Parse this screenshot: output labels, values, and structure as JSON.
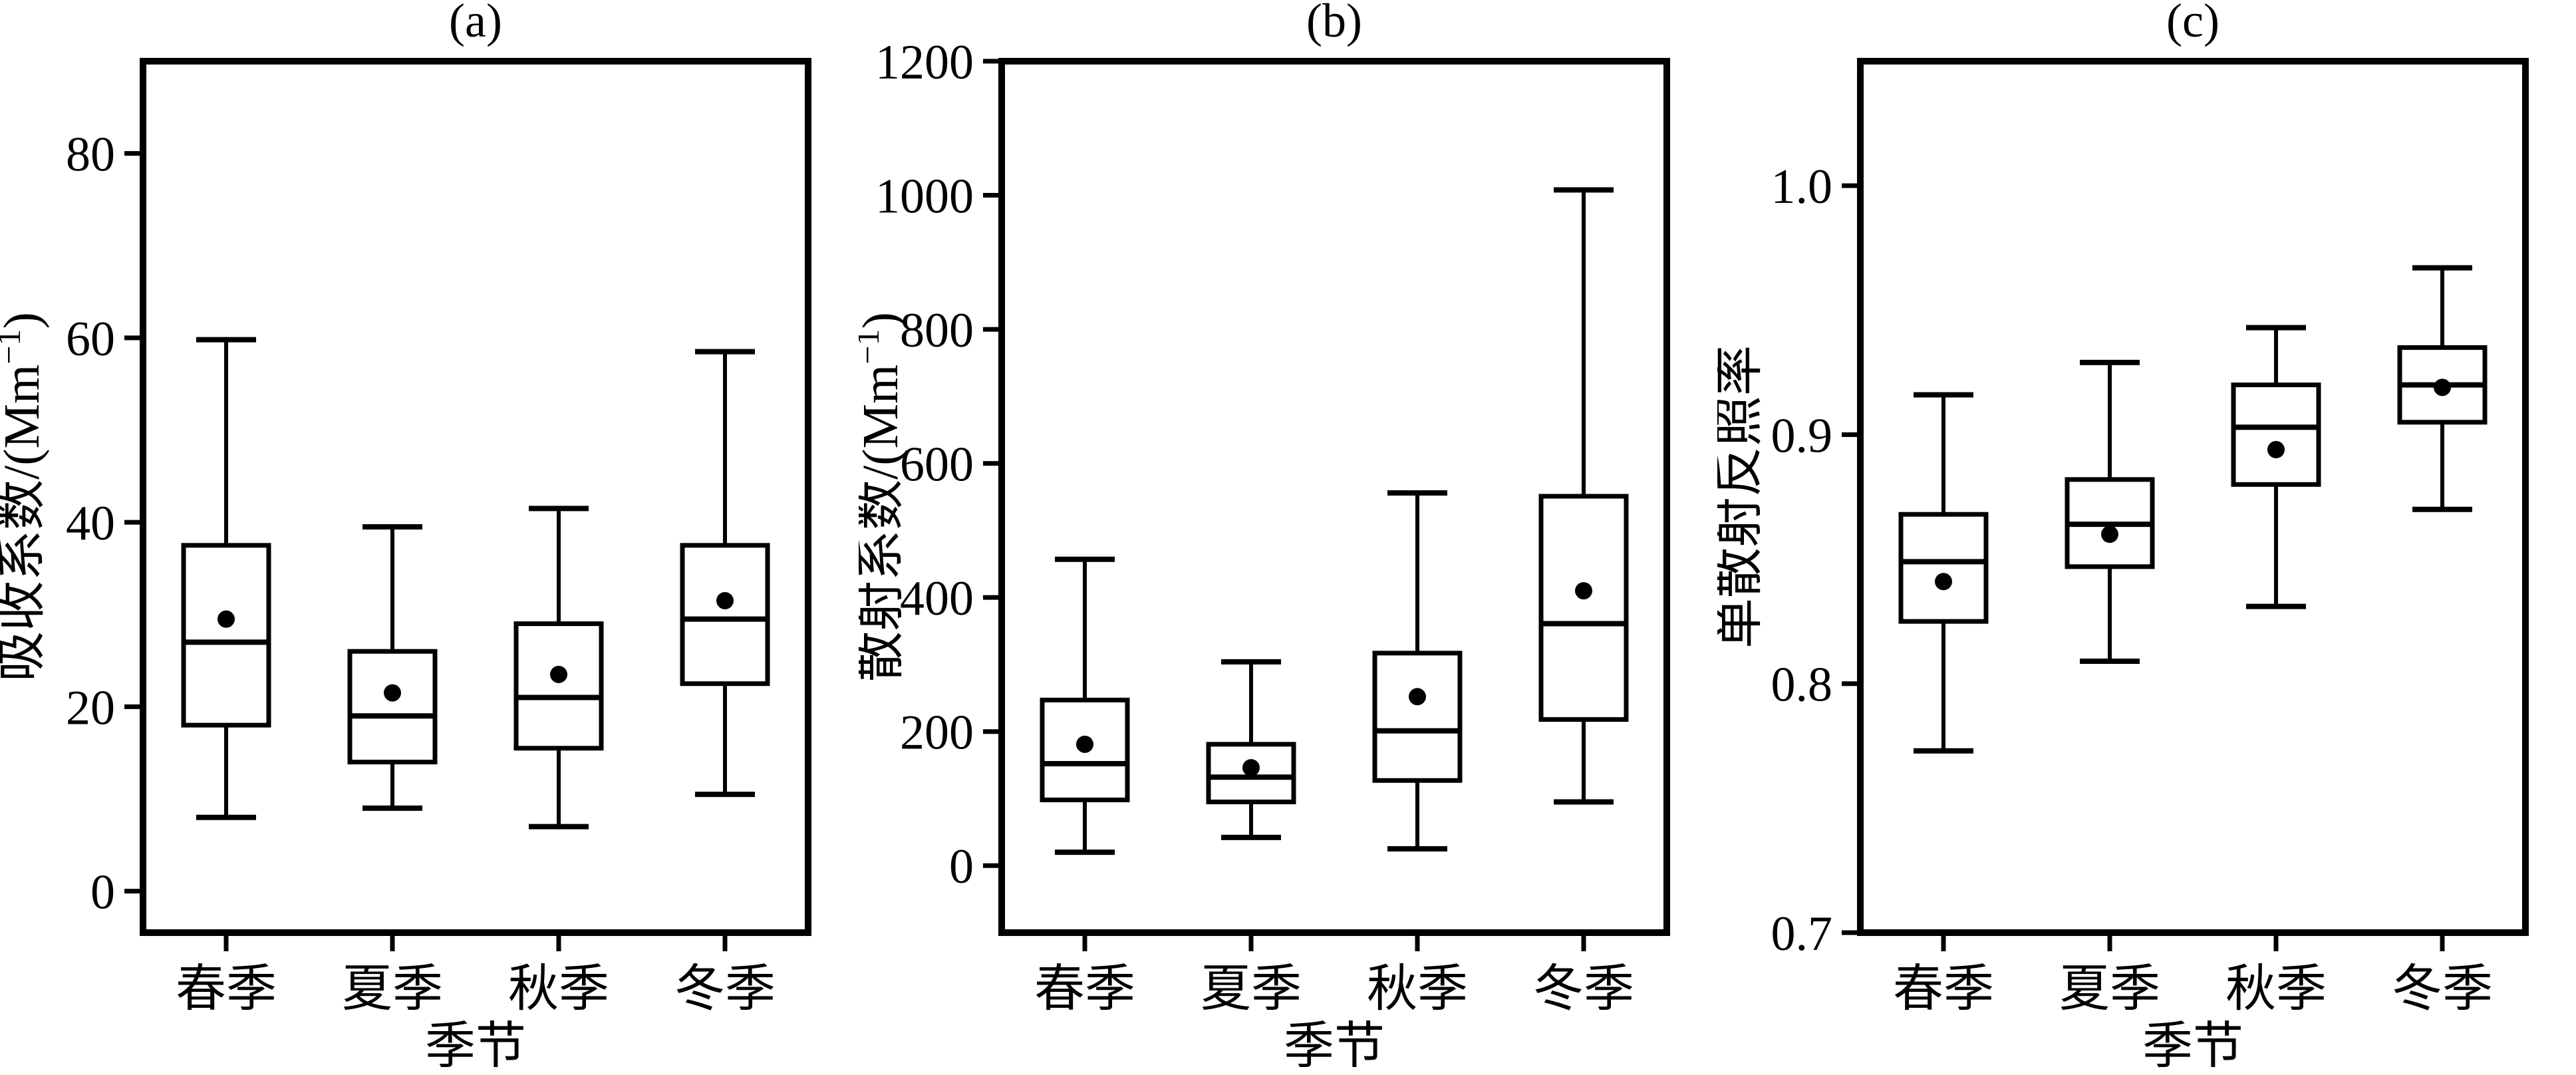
{
  "figure": {
    "background": "#ffffff",
    "line_color": "#000000",
    "mean_marker": "filled-dot"
  },
  "chart_data": [
    {
      "type": "box",
      "panel_label": "(a)",
      "ylabel": "吸收系数/(Mm⁻¹)",
      "xlabel": "季节",
      "categories": [
        "春季",
        "夏季",
        "秋季",
        "冬季"
      ],
      "ytick_labels": [
        "0",
        "20",
        "40",
        "60",
        "80"
      ],
      "yticks": [
        0,
        20,
        40,
        60,
        80
      ],
      "ylim": [
        -4.5,
        90
      ],
      "grid": false,
      "series": [
        {
          "key": "spring",
          "category": "春季",
          "whisker_low": 8,
          "q1": 18,
          "median": 27,
          "mean": 29.5,
          "q3": 37.5,
          "whisker_high": 59.8
        },
        {
          "key": "summer",
          "category": "夏季",
          "whisker_low": 9,
          "q1": 14,
          "median": 19,
          "mean": 21.5,
          "q3": 26,
          "whisker_high": 39.5
        },
        {
          "key": "autumn",
          "category": "秋季",
          "whisker_low": 7,
          "q1": 15.5,
          "median": 21,
          "mean": 23.5,
          "q3": 29,
          "whisker_high": 41.5
        },
        {
          "key": "winter",
          "category": "冬季",
          "whisker_low": 10.5,
          "q1": 22.5,
          "median": 29.5,
          "mean": 31.5,
          "q3": 37.5,
          "whisker_high": 58.5
        }
      ]
    },
    {
      "type": "box",
      "panel_label": "(b)",
      "ylabel": "散射系数/(Mm⁻¹)",
      "xlabel": "季节",
      "categories": [
        "春季",
        "夏季",
        "秋季",
        "冬季"
      ],
      "ytick_labels": [
        "0",
        "200",
        "400",
        "600",
        "800",
        "1000",
        "1200"
      ],
      "yticks": [
        0,
        200,
        400,
        600,
        800,
        1000,
        1200
      ],
      "ylim": [
        -100,
        1200
      ],
      "grid": false,
      "series": [
        {
          "key": "spring",
          "category": "春季",
          "whisker_low": 20,
          "q1": 98,
          "median": 152,
          "mean": 181,
          "q3": 247,
          "whisker_high": 457
        },
        {
          "key": "summer",
          "category": "夏季",
          "whisker_low": 42,
          "q1": 95,
          "median": 132,
          "mean": 146,
          "q3": 181,
          "whisker_high": 304
        },
        {
          "key": "autumn",
          "category": "秋季",
          "whisker_low": 25,
          "q1": 127,
          "median": 201,
          "mean": 252,
          "q3": 317,
          "whisker_high": 556
        },
        {
          "key": "winter",
          "category": "冬季",
          "whisker_low": 95,
          "q1": 218,
          "median": 361,
          "mean": 410,
          "q3": 551,
          "whisker_high": 1008
        }
      ]
    },
    {
      "type": "box",
      "panel_label": "(c)",
      "ylabel": "单散射反照率",
      "xlabel": "季节",
      "categories": [
        "春季",
        "夏季",
        "秋季",
        "冬季"
      ],
      "ytick_labels": [
        "0.7",
        "0.8",
        "0.9",
        "1.0"
      ],
      "yticks": [
        0.7,
        0.8,
        0.9,
        1.0
      ],
      "ylim": [
        0.7,
        1.05
      ],
      "grid": false,
      "series": [
        {
          "key": "spring",
          "category": "春季",
          "whisker_low": 0.773,
          "q1": 0.825,
          "median": 0.849,
          "mean": 0.841,
          "q3": 0.868,
          "whisker_high": 0.916
        },
        {
          "key": "summer",
          "category": "夏季",
          "whisker_low": 0.809,
          "q1": 0.847,
          "median": 0.864,
          "mean": 0.86,
          "q3": 0.882,
          "whisker_high": 0.929
        },
        {
          "key": "autumn",
          "category": "秋季",
          "whisker_low": 0.831,
          "q1": 0.88,
          "median": 0.903,
          "mean": 0.894,
          "q3": 0.92,
          "whisker_high": 0.943
        },
        {
          "key": "winter",
          "category": "冬季",
          "whisker_low": 0.87,
          "q1": 0.905,
          "median": 0.92,
          "mean": 0.919,
          "q3": 0.935,
          "whisker_high": 0.967
        }
      ]
    }
  ]
}
